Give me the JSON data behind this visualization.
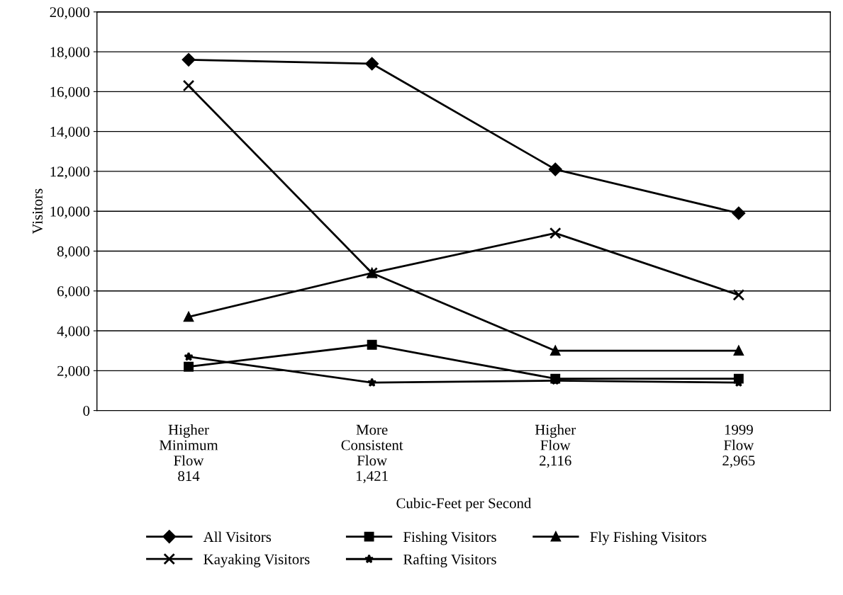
{
  "chart_data": {
    "type": "line",
    "xlabel": "Cubic-Feet per Second",
    "ylabel": "Visitors",
    "categories": [
      "Higher\nMinimum\nFlow\n814",
      "More\nConsistent\nFlow\n1,421",
      "Higher\nFlow\n2,116",
      "1999\nFlow\n2,965"
    ],
    "series": [
      {
        "name": "All Visitors",
        "color": "#000000",
        "marker": "diamond",
        "values": [
          17600,
          17400,
          12100,
          9900
        ]
      },
      {
        "name": "Fishing Visitors",
        "color": "#000000",
        "marker": "square",
        "values": [
          2200,
          3300,
          1600,
          1600
        ]
      },
      {
        "name": "Fly Fishing Visitors",
        "color": "#000000",
        "marker": "triangle",
        "values": [
          4700,
          6900,
          3000,
          3000
        ]
      },
      {
        "name": "Kayaking Visitors",
        "color": "#000000",
        "marker": "cross",
        "values": [
          16300,
          6900,
          8900,
          5800
        ]
      },
      {
        "name": "Rafting Visitors",
        "color": "#000000",
        "marker": "star",
        "values": [
          2700,
          1400,
          1500,
          1400
        ]
      }
    ],
    "ylim": [
      0,
      20000
    ],
    "yticks": [
      {
        "value": 0,
        "label": "0"
      },
      {
        "value": 2000,
        "label": "2,000"
      },
      {
        "value": 4000,
        "label": "4,000"
      },
      {
        "value": 6000,
        "label": "6,000"
      },
      {
        "value": 8000,
        "label": "8,000"
      },
      {
        "value": 10000,
        "label": "10,000"
      },
      {
        "value": 12000,
        "label": "12,000"
      },
      {
        "value": 14000,
        "label": "14,000"
      },
      {
        "value": 16000,
        "label": "16,000"
      },
      {
        "value": 18000,
        "label": "18,000"
      },
      {
        "value": 20000,
        "label": "20,000"
      }
    ],
    "grid": "y",
    "legend": "bottom",
    "line_style": "solid"
  }
}
